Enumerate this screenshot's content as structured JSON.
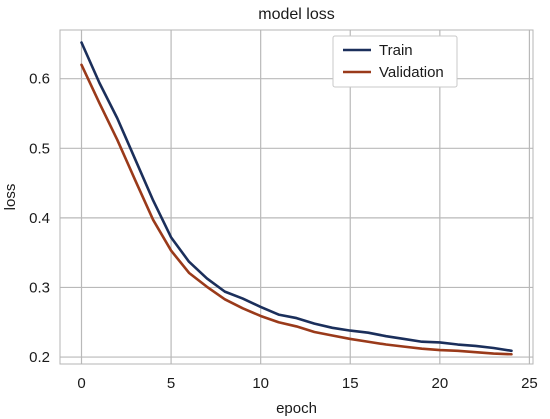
{
  "chart_data": {
    "type": "line",
    "title": "model loss",
    "xlabel": "epoch",
    "ylabel": "loss",
    "xlim": [
      -1.2,
      25.2
    ],
    "ylim": [
      0.19,
      0.67
    ],
    "xticks": [
      0,
      5,
      10,
      15,
      20,
      25
    ],
    "yticks": [
      0.2,
      0.3,
      0.4,
      0.5,
      0.6
    ],
    "x": [
      0,
      1,
      2,
      3,
      4,
      5,
      6,
      7,
      8,
      9,
      10,
      11,
      12,
      13,
      14,
      15,
      16,
      17,
      18,
      19,
      20,
      21,
      22,
      23,
      24
    ],
    "series": [
      {
        "name": "Train",
        "color": "#1b2f5b",
        "values": [
          0.652,
          0.594,
          0.543,
          0.484,
          0.425,
          0.372,
          0.337,
          0.313,
          0.294,
          0.284,
          0.272,
          0.261,
          0.256,
          0.248,
          0.242,
          0.238,
          0.235,
          0.23,
          0.226,
          0.222,
          0.221,
          0.218,
          0.216,
          0.213,
          0.209
        ]
      },
      {
        "name": "Validation",
        "color": "#9a3a1a",
        "values": [
          0.62,
          0.565,
          0.512,
          0.454,
          0.397,
          0.353,
          0.321,
          0.301,
          0.283,
          0.27,
          0.259,
          0.25,
          0.244,
          0.236,
          0.231,
          0.226,
          0.222,
          0.218,
          0.215,
          0.212,
          0.21,
          0.209,
          0.207,
          0.205,
          0.204
        ]
      }
    ],
    "grid": true,
    "legend": "top-right"
  }
}
